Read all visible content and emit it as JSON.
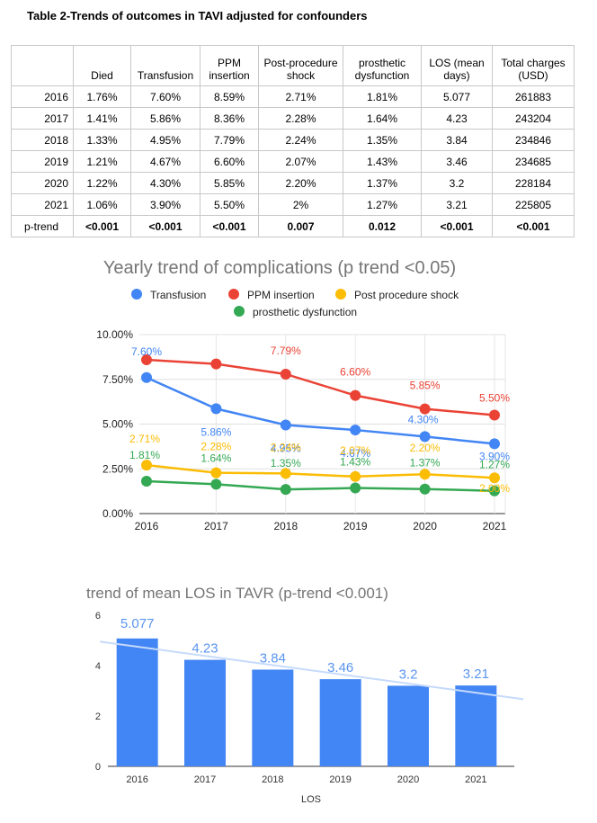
{
  "table": {
    "title": "Table 2-Trends of outcomes in TAVI adjusted for confounders",
    "headers": [
      "",
      "Died",
      "Transfusion",
      "PPM insertion",
      "Post-procedure shock",
      "prosthetic dysfunction",
      "LOS (mean days)",
      "Total charges (USD)"
    ],
    "rows": [
      [
        "2016",
        "1.76%",
        "7.60%",
        "8.59%",
        "2.71%",
        "1.81%",
        "5.077",
        "261883"
      ],
      [
        "2017",
        "1.41%",
        "5.86%",
        "8.36%",
        "2.28%",
        "1.64%",
        "4.23",
        "243204"
      ],
      [
        "2018",
        "1.33%",
        "4.95%",
        "7.79%",
        "2.24%",
        "1.35%",
        "3.84",
        "234846"
      ],
      [
        "2019",
        "1.21%",
        "4.67%",
        "6.60%",
        "2.07%",
        "1.43%",
        "3.46",
        "234685"
      ],
      [
        "2020",
        "1.22%",
        "4.30%",
        "5.85%",
        "2.20%",
        "1.37%",
        "3.2",
        "228184"
      ],
      [
        "2021",
        "1.06%",
        "3.90%",
        "5.50%",
        "2%",
        "1.27%",
        "3.21",
        "225805"
      ],
      [
        "p-trend",
        "<0.001",
        "<0.001",
        "<0.001",
        "0.007",
        "0.012",
        "<0.001",
        "<0.001"
      ]
    ]
  },
  "chart_data": [
    {
      "type": "line",
      "title": "Yearly trend of complications (p trend <0.05)",
      "categories": [
        "2016",
        "2017",
        "2018",
        "2019",
        "2020",
        "2021"
      ],
      "ylim": [
        0,
        10
      ],
      "yticks": [
        "0.00%",
        "2.50%",
        "5.00%",
        "7.50%",
        "10.00%"
      ],
      "grid": true,
      "legend": "top",
      "series": [
        {
          "name": "Transfusion",
          "color": "#4285F4",
          "values": [
            7.6,
            5.86,
            4.95,
            4.67,
            4.3,
            3.9
          ],
          "labels": [
            "7.60%",
            "5.86%",
            "4.95%",
            "4.67%",
            "4.30%",
            "3.90%"
          ]
        },
        {
          "name": "PPM insertion",
          "color": "#EA4335",
          "values": [
            8.59,
            8.36,
            7.79,
            6.6,
            5.85,
            5.5
          ],
          "labels": [
            "",
            "",
            "7.79%",
            "6.60%",
            "5.85%",
            "5.50%"
          ]
        },
        {
          "name": "Post procedure shock",
          "color": "#FBBC04",
          "values": [
            2.71,
            2.28,
            2.24,
            2.07,
            2.2,
            2.0
          ],
          "labels": [
            "2.71%",
            "2.28%",
            "2.24%",
            "2.07%",
            "2.20%",
            "2.00%"
          ]
        },
        {
          "name": "prosthetic dysfunction",
          "color": "#34A853",
          "values": [
            1.81,
            1.64,
            1.35,
            1.43,
            1.37,
            1.27
          ],
          "labels": [
            "1.81%",
            "1.64%",
            "1.35%",
            "1.43%",
            "1.37%",
            "1.27%"
          ]
        }
      ]
    },
    {
      "type": "bar",
      "title": "trend of mean LOS in TAVR (p-trend <0.001)",
      "categories": [
        "2016",
        "2017",
        "2018",
        "2019",
        "2020",
        "2021"
      ],
      "values": [
        5.077,
        4.23,
        3.84,
        3.46,
        3.2,
        3.21
      ],
      "labels": [
        "5.077",
        "4.23",
        "3.84",
        "3.46",
        "3.2",
        "3.21"
      ],
      "ylim": [
        0,
        6
      ],
      "yticks": [
        "0",
        "2",
        "4",
        "6"
      ],
      "xlabel": "LOS",
      "trendline": true,
      "bar_color": "#4285F4",
      "trend_color": "#C6DAFC",
      "label_color": "#5B95F0"
    }
  ]
}
